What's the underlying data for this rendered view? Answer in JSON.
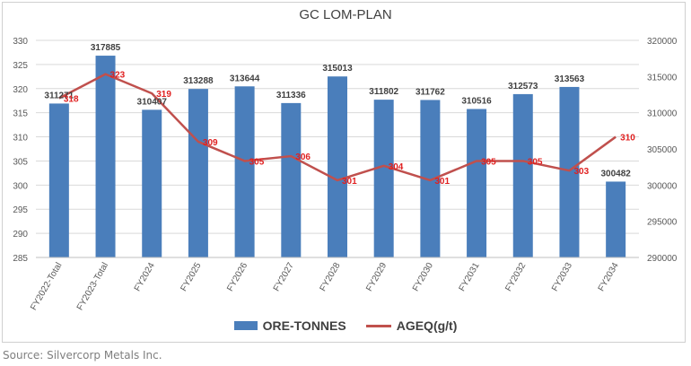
{
  "chart_data": {
    "type": "bar",
    "title": "GC LOM-PLAN",
    "categories": [
      "FY2022-Total",
      "FY2023-Total",
      "FY2024",
      "FY2025",
      "FY2026",
      "FY2027",
      "FY2028",
      "FY2029",
      "FY2030",
      "FY2031",
      "FY2032",
      "FY2033",
      "FY2034"
    ],
    "series": [
      {
        "name": "ORE-TONNES",
        "type": "bar",
        "axis": "secondary",
        "color": "#4a7ebb",
        "values": [
          311271,
          317885,
          310407,
          313288,
          313644,
          311336,
          315013,
          311802,
          311762,
          310516,
          312573,
          313563,
          300482
        ]
      },
      {
        "name": "AGEQ(g/t)",
        "type": "line",
        "axis": "primary",
        "color": "#c0504d",
        "values": [
          318,
          323,
          319,
          309,
          305,
          306,
          301,
          304,
          301,
          305,
          305,
          303,
          310
        ]
      }
    ],
    "primary_axis": {
      "ylim": [
        285,
        330
      ],
      "ticks": [
        285,
        290,
        295,
        300,
        305,
        310,
        315,
        320,
        325,
        330
      ]
    },
    "secondary_axis": {
      "ylim": [
        290000,
        320000
      ],
      "ticks": [
        290000,
        295000,
        300000,
        305000,
        310000,
        315000,
        320000
      ]
    },
    "grid": true,
    "legend_position": "bottom"
  },
  "source": "Source: Silvercorp Metals Inc."
}
